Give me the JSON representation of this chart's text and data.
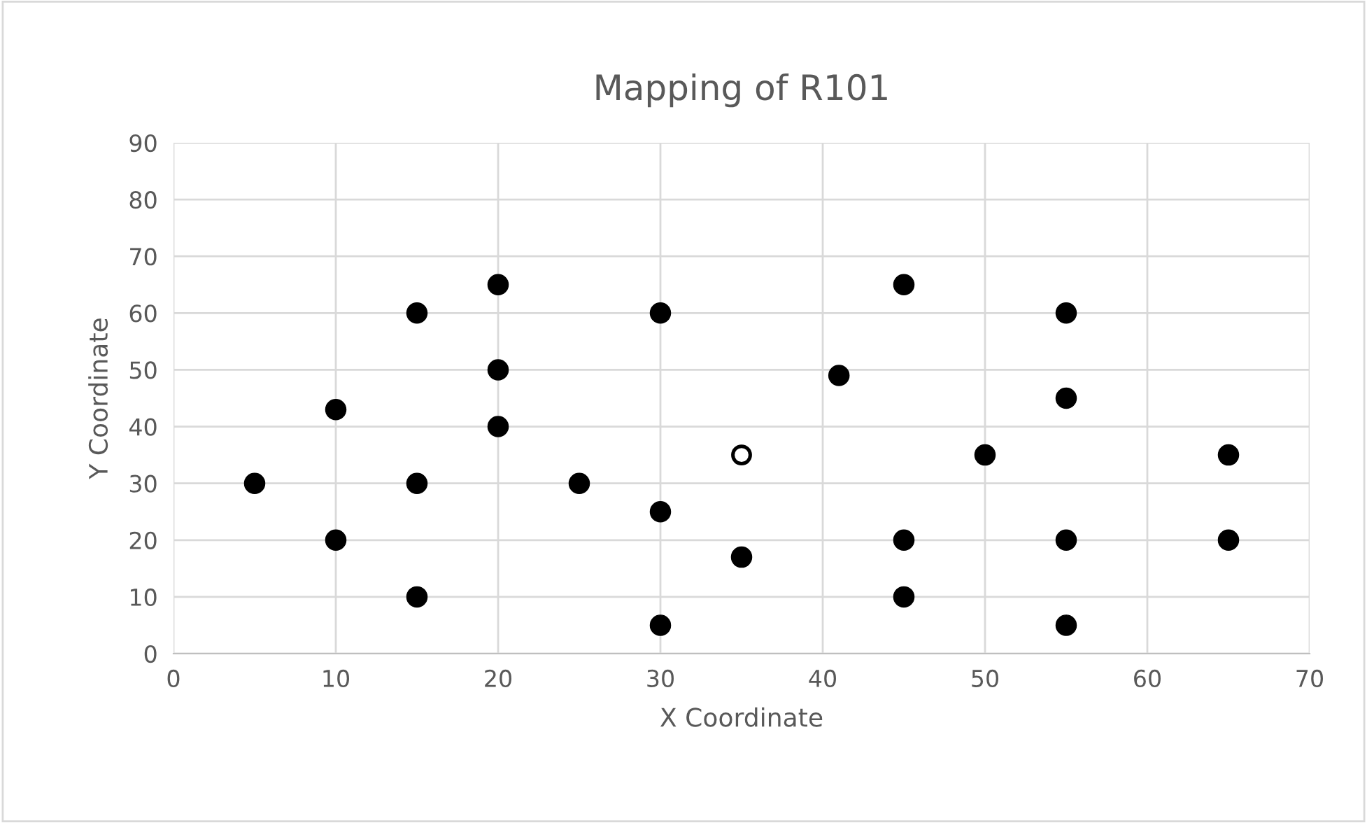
{
  "chart_data": {
    "type": "scatter",
    "title": "Mapping of R101",
    "xlabel": "X Coordinate",
    "ylabel": "Y Coordinate",
    "xlim": [
      0,
      70
    ],
    "xticks": [
      0,
      10,
      20,
      30,
      40,
      50,
      60,
      70
    ],
    "ylim": [
      0,
      90
    ],
    "yticks": [
      0,
      10,
      20,
      30,
      40,
      50,
      60,
      70,
      80,
      90
    ],
    "grid": true,
    "legend": false,
    "marker": "circle",
    "series": [
      {
        "color": "#000000",
        "x": [
          5,
          10,
          10,
          15,
          15,
          15,
          20,
          20,
          20,
          25,
          30,
          30,
          30,
          35,
          41,
          45,
          45,
          45,
          50,
          55,
          55,
          55,
          55,
          65,
          65
        ],
        "values": [
          30,
          43,
          20,
          60,
          30,
          10,
          65,
          50,
          40,
          30,
          60,
          25,
          5,
          17,
          49,
          65,
          20,
          10,
          35,
          60,
          45,
          20,
          5,
          35,
          20
        ]
      },
      {
        "color": "#000000",
        "marker": "open circle",
        "x": [
          35
        ],
        "values": [
          35
        ]
      }
    ]
  }
}
